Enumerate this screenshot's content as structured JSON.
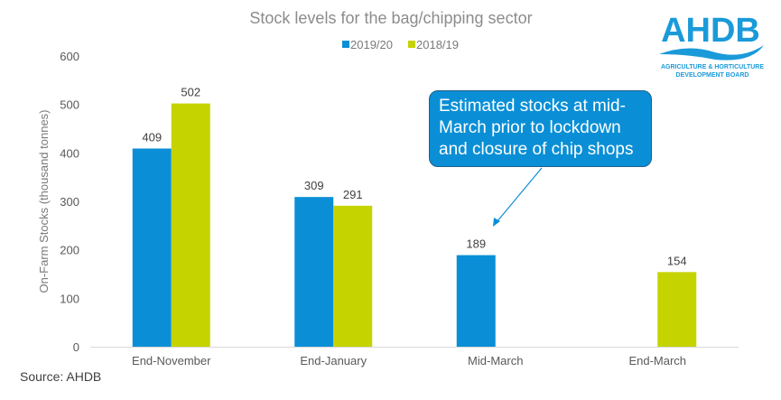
{
  "chart_data": {
    "type": "bar",
    "title": "Stock levels for the bag/chipping sector",
    "ylabel": "On-Farm Stocks (thousand tonnes)",
    "xlabel": "",
    "ylim": [
      0,
      600
    ],
    "yticks": [
      "0",
      "100",
      "200",
      "300",
      "400",
      "500",
      "600"
    ],
    "categories": [
      "End-November",
      "End-January",
      "Mid-March",
      "End-March"
    ],
    "series": [
      {
        "name": "2019/20",
        "color": "#0a8fd6",
        "values": [
          409,
          309,
          189,
          null
        ]
      },
      {
        "name": "2018/19",
        "color": "#c5d300",
        "values": [
          502,
          291,
          null,
          154
        ]
      }
    ],
    "legend": "top-center",
    "grid": false,
    "annotation": "Estimated stocks at mid-March prior to lockdown and closure of chip shops"
  },
  "source": "Source: AHDB",
  "logo": {
    "name": "AHDB",
    "subtitle_1": "AGRICULTURE & HORTICULTURE",
    "subtitle_2": "DEVELOPMENT BOARD"
  }
}
